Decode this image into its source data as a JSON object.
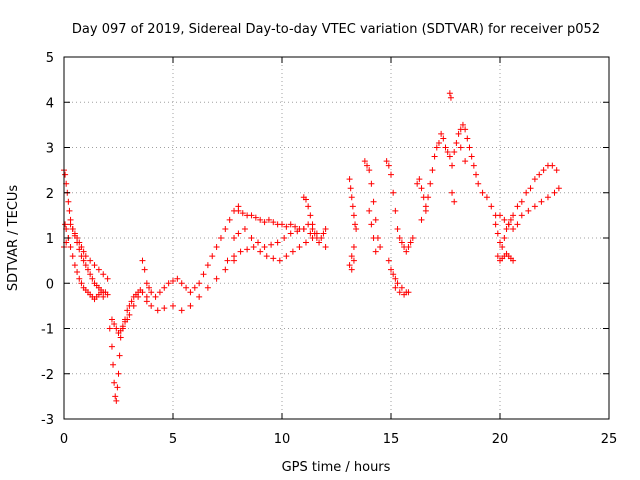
{
  "chart_data": {
    "type": "scatter",
    "title": "Day 097 of 2019, Sidereal Day-to-day VTEC variation (SDTVAR) for receiver p052",
    "xlabel": "GPS time / hours",
    "ylabel": "SDTVAR / TECUs",
    "xlim": [
      0,
      25
    ],
    "ylim": [
      -3,
      5
    ],
    "xticks": [
      0,
      5,
      10,
      15,
      20,
      25
    ],
    "yticks": [
      -3,
      -2,
      -1,
      0,
      1,
      2,
      3,
      4,
      5
    ],
    "grid": true,
    "marker": "+",
    "marker_color": "#ff0000",
    "series": [
      {
        "name": "SDTVAR",
        "x": [
          0.0,
          0.05,
          0.1,
          0.15,
          0.2,
          0.25,
          0.3,
          0.4,
          0.5,
          0.6,
          0.7,
          0.8,
          0.9,
          1.0,
          1.1,
          1.2,
          1.3,
          1.4,
          1.5,
          1.6,
          1.7,
          1.8,
          1.9,
          2.0,
          0.05,
          0.1,
          0.2,
          0.3,
          0.4,
          0.5,
          0.6,
          0.7,
          0.8,
          0.9,
          1.0,
          1.1,
          1.2,
          1.3,
          1.4,
          1.5,
          1.6,
          1.7,
          1.8,
          0.0,
          0.1,
          0.2,
          0.3,
          0.4,
          0.5,
          0.6,
          0.7,
          0.8,
          0.9,
          1.0,
          1.2,
          1.4,
          1.6,
          1.8,
          2.0,
          2.1,
          2.2,
          2.25,
          2.3,
          2.35,
          2.4,
          2.45,
          2.5,
          2.55,
          2.6,
          2.7,
          2.8,
          2.9,
          3.0,
          3.1,
          3.2,
          3.3,
          3.4,
          3.5,
          2.2,
          2.3,
          2.4,
          2.5,
          2.6,
          2.7,
          2.8,
          2.9,
          3.0,
          3.2,
          3.4,
          3.6,
          3.8,
          3.6,
          3.7,
          3.8,
          3.9,
          4.0,
          4.2,
          4.4,
          4.6,
          4.8,
          5.0,
          5.2,
          5.4,
          5.6,
          5.8,
          6.0,
          6.2,
          6.4,
          6.6,
          6.8,
          7.0,
          7.2,
          7.4,
          7.6,
          7.8,
          8.0,
          3.8,
          4.0,
          4.3,
          4.6,
          5.0,
          5.4,
          5.8,
          6.2,
          6.6,
          7.0,
          7.4,
          7.8,
          8.0,
          8.2,
          8.4,
          8.6,
          8.8,
          9.0,
          9.2,
          9.4,
          9.6,
          9.8,
          10.0,
          10.2,
          10.4,
          10.6,
          10.8,
          11.0,
          11.2,
          11.4,
          11.6,
          11.8,
          12.0,
          7.8,
          8.0,
          8.3,
          8.6,
          8.9,
          9.2,
          9.5,
          9.8,
          10.1,
          10.4,
          10.7,
          11.0,
          11.3,
          11.6,
          11.9,
          7.5,
          7.8,
          8.1,
          8.4,
          8.7,
          9.0,
          9.3,
          9.6,
          9.9,
          10.2,
          10.5,
          10.8,
          11.1,
          11.4,
          11.7,
          12.0,
          11.0,
          11.1,
          11.2,
          11.3,
          11.4,
          11.5,
          13.1,
          13.15,
          13.2,
          13.25,
          13.3,
          13.35,
          13.4,
          13.3,
          13.2,
          13.1,
          13.2,
          13.3,
          13.8,
          13.9,
          14.0,
          14.1,
          14.2,
          14.3,
          14.4,
          14.5,
          14.0,
          14.1,
          14.2,
          14.3,
          14.8,
          14.9,
          15.0,
          15.1,
          15.2,
          15.3,
          15.4,
          15.5,
          15.6,
          15.7,
          15.8,
          15.9,
          16.0,
          15.2,
          15.4,
          15.6,
          15.8,
          14.9,
          15.0,
          15.1,
          15.2,
          15.3,
          15.5,
          15.7,
          16.2,
          16.3,
          16.4,
          16.5,
          16.6,
          16.7,
          16.8,
          16.9,
          17.0,
          17.1,
          17.2,
          16.4,
          16.6,
          17.3,
          17.4,
          17.5,
          17.6,
          17.7,
          17.8,
          17.9,
          18.0,
          18.1,
          18.2,
          18.3,
          18.4,
          18.5,
          18.6,
          18.7,
          18.8,
          18.9,
          19.0,
          19.2,
          19.4,
          19.6,
          19.8,
          17.7,
          17.75,
          18.2,
          18.4,
          17.8,
          17.9,
          19.8,
          19.9,
          20.0,
          20.1,
          20.2,
          20.3,
          20.4,
          20.5,
          20.6,
          20.8,
          21.0,
          21.2,
          21.4,
          21.6,
          21.8,
          22.0,
          22.2,
          22.4,
          22.6,
          20.0,
          20.2,
          20.4,
          20.6,
          20.8,
          21.0,
          21.3,
          21.6,
          21.9,
          22.2,
          22.5,
          22.7,
          19.9,
          20.0,
          20.1,
          20.2,
          20.3,
          20.4,
          20.5,
          20.6
        ],
        "y": [
          2.5,
          2.4,
          2.2,
          2.0,
          1.8,
          1.6,
          1.4,
          1.2,
          1.05,
          0.9,
          0.75,
          0.6,
          0.5,
          0.4,
          0.3,
          0.2,
          0.1,
          0.0,
          -0.05,
          -0.1,
          -0.15,
          -0.2,
          -0.2,
          -0.25,
          1.3,
          1.2,
          1.0,
          0.8,
          0.6,
          0.4,
          0.25,
          0.1,
          0.0,
          -0.1,
          -0.15,
          -0.2,
          -0.25,
          -0.3,
          -0.35,
          -0.3,
          -0.25,
          -0.2,
          -0.3,
          0.8,
          0.9,
          1.0,
          1.3,
          1.2,
          1.1,
          1.0,
          0.9,
          0.8,
          0.7,
          0.6,
          0.5,
          0.4,
          0.3,
          0.2,
          0.1,
          -1.0,
          -1.4,
          -1.8,
          -2.2,
          -2.5,
          -2.6,
          -2.3,
          -2.0,
          -1.6,
          -1.2,
          -1.0,
          -0.8,
          -0.6,
          -0.5,
          -0.4,
          -0.3,
          -0.25,
          -0.2,
          -0.15,
          -0.8,
          -0.9,
          -1.0,
          -1.1,
          -1.05,
          -0.95,
          -0.85,
          -0.8,
          -0.7,
          -0.5,
          -0.3,
          -0.2,
          -0.3,
          0.5,
          0.3,
          0.0,
          -0.1,
          -0.2,
          -0.3,
          -0.2,
          -0.1,
          0.0,
          0.05,
          0.1,
          0.0,
          -0.1,
          -0.2,
          -0.1,
          0.0,
          0.2,
          0.4,
          0.6,
          0.8,
          1.0,
          1.2,
          1.4,
          1.6,
          1.7,
          -0.4,
          -0.5,
          -0.6,
          -0.55,
          -0.5,
          -0.6,
          -0.5,
          -0.3,
          -0.1,
          0.1,
          0.3,
          0.5,
          1.6,
          1.55,
          1.5,
          1.5,
          1.45,
          1.4,
          1.35,
          1.4,
          1.35,
          1.3,
          1.3,
          1.25,
          1.3,
          1.25,
          1.2,
          1.2,
          1.3,
          1.2,
          1.1,
          1.0,
          1.2,
          1.0,
          1.1,
          1.2,
          1.0,
          0.9,
          0.8,
          0.85,
          0.9,
          1.0,
          1.1,
          1.15,
          1.2,
          1.1,
          1.0,
          1.1,
          0.5,
          0.6,
          0.7,
          0.75,
          0.8,
          0.7,
          0.6,
          0.55,
          0.5,
          0.6,
          0.7,
          0.8,
          0.9,
          1.0,
          0.9,
          0.8,
          1.9,
          1.85,
          1.7,
          1.5,
          1.3,
          1.1,
          2.3,
          2.1,
          1.9,
          1.7,
          1.5,
          1.3,
          1.2,
          0.8,
          0.6,
          0.4,
          0.3,
          0.5,
          2.7,
          2.6,
          2.5,
          2.2,
          1.8,
          1.4,
          1.0,
          0.8,
          1.6,
          1.3,
          1.0,
          0.7,
          2.7,
          2.6,
          2.4,
          2.0,
          1.6,
          1.2,
          1.0,
          0.9,
          0.8,
          0.7,
          0.8,
          0.9,
          1.0,
          -0.1,
          -0.2,
          -0.25,
          -0.2,
          0.5,
          0.3,
          0.2,
          0.1,
          0.0,
          -0.1,
          -0.2,
          2.2,
          2.3,
          2.1,
          1.9,
          1.7,
          1.9,
          2.2,
          2.5,
          2.8,
          3.0,
          3.1,
          1.4,
          1.6,
          3.3,
          3.2,
          3.0,
          2.9,
          2.8,
          2.6,
          2.9,
          3.1,
          3.3,
          3.4,
          3.5,
          3.4,
          3.2,
          3.0,
          2.8,
          2.6,
          2.4,
          2.2,
          2.0,
          1.9,
          1.7,
          1.5,
          4.2,
          4.1,
          3.0,
          2.7,
          2.0,
          1.8,
          1.3,
          1.1,
          0.9,
          0.8,
          1.0,
          1.2,
          1.3,
          1.4,
          1.5,
          1.7,
          1.8,
          2.0,
          2.1,
          2.3,
          2.4,
          2.5,
          2.6,
          2.6,
          2.5,
          1.5,
          1.4,
          1.3,
          1.2,
          1.3,
          1.5,
          1.6,
          1.7,
          1.8,
          1.9,
          2.0,
          2.1,
          0.6,
          0.5,
          0.55,
          0.6,
          0.65,
          0.6,
          0.55,
          0.5
        ]
      }
    ]
  }
}
